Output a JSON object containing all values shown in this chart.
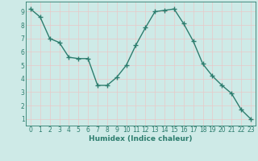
{
  "xlabel": "Humidex (Indice chaleur)",
  "x": [
    0,
    1,
    2,
    3,
    4,
    5,
    6,
    7,
    8,
    9,
    10,
    11,
    12,
    13,
    14,
    15,
    16,
    17,
    18,
    19,
    20,
    21,
    22,
    23
  ],
  "y": [
    9.2,
    8.6,
    7.0,
    6.7,
    5.6,
    5.5,
    5.5,
    3.5,
    3.5,
    4.1,
    5.0,
    6.5,
    7.8,
    9.0,
    9.1,
    9.2,
    8.1,
    6.8,
    5.1,
    4.2,
    3.5,
    2.9,
    1.7,
    1.0
  ],
  "line_color": "#2d7d6e",
  "marker": "+",
  "marker_size": 4,
  "marker_linewidth": 1.0,
  "background_color": "#ceeae7",
  "grid_color": "#e8c8c8",
  "tick_color": "#2d7d6e",
  "label_color": "#2d7d6e",
  "xlim": [
    -0.5,
    23.5
  ],
  "ylim": [
    0.5,
    9.75
  ],
  "yticks": [
    1,
    2,
    3,
    4,
    5,
    6,
    7,
    8,
    9
  ],
  "xticks": [
    0,
    1,
    2,
    3,
    4,
    5,
    6,
    7,
    8,
    9,
    10,
    11,
    12,
    13,
    14,
    15,
    16,
    17,
    18,
    19,
    20,
    21,
    22,
    23
  ],
  "xlabel_fontsize": 6.5,
  "tick_fontsize": 5.5,
  "linewidth": 1.0
}
